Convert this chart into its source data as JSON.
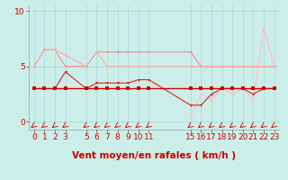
{
  "background_color": "#cceee8",
  "grid_color": "#aadddd",
  "xlabel": "Vent moyen/en rafales ( km/h )",
  "xlim": [
    -0.5,
    23.5
  ],
  "ylim": [
    -0.7,
    10.5
  ],
  "yticks": [
    0,
    5,
    10
  ],
  "xticks": [
    0,
    1,
    2,
    3,
    5,
    6,
    7,
    8,
    9,
    10,
    11,
    15,
    16,
    17,
    18,
    19,
    20,
    21,
    22,
    23
  ],
  "line_flat_x": [
    0,
    1,
    2,
    3,
    5,
    6,
    7,
    8,
    9,
    10,
    11,
    15,
    16,
    17,
    18,
    19,
    20,
    21,
    22,
    23
  ],
  "line_flat_y": [
    3,
    3,
    3,
    3,
    3,
    3,
    3,
    3,
    3,
    3,
    3,
    3,
    3,
    3,
    3,
    3,
    3,
    3,
    3,
    3
  ],
  "line_flat_color": "#cc0000",
  "line_vary_x": [
    0,
    1,
    2,
    3,
    5,
    6,
    7,
    8,
    9,
    10,
    11,
    15,
    16,
    17,
    18,
    19,
    20,
    21,
    22,
    23
  ],
  "line_vary_y": [
    3,
    3,
    3,
    4.5,
    3,
    3.5,
    3.5,
    3.5,
    3.5,
    3.8,
    3.8,
    1.5,
    1.5,
    2.5,
    3,
    3,
    3,
    2.5,
    3,
    3
  ],
  "line_vary_color": "#dd2222",
  "line_upper1_x": [
    0,
    1,
    2,
    3,
    5,
    6,
    7,
    8,
    9,
    10,
    11,
    15,
    16,
    17,
    18,
    19,
    20,
    21,
    22,
    23
  ],
  "line_upper1_y": [
    5,
    6.5,
    6.5,
    5,
    5,
    6.3,
    6.3,
    6.3,
    6.3,
    6.3,
    6.3,
    6.3,
    5,
    5,
    5,
    5,
    5,
    5,
    5,
    5
  ],
  "line_upper1_color": "#ff8888",
  "line_upper2_x": [
    0,
    1,
    2,
    3,
    5,
    6,
    7,
    8,
    9,
    10,
    11,
    15,
    16,
    17,
    18,
    19,
    20,
    21,
    22,
    23
  ],
  "line_upper2_y": [
    5,
    6.5,
    6.5,
    6,
    5,
    6.3,
    5,
    5,
    5,
    5,
    5,
    5,
    5,
    5,
    5,
    5,
    5,
    5,
    5,
    5
  ],
  "line_upper2_color": "#ffaaaa",
  "line_right_x": [
    15,
    16,
    17,
    18,
    19,
    20,
    21,
    22,
    23
  ],
  "line_right_y": [
    0.5,
    2.5,
    2,
    3,
    2.5,
    3,
    2,
    8.5,
    5
  ],
  "line_right_color": "#ffbbcc",
  "xlabel_fontsize": 7.5,
  "tick_fontsize": 6.5
}
